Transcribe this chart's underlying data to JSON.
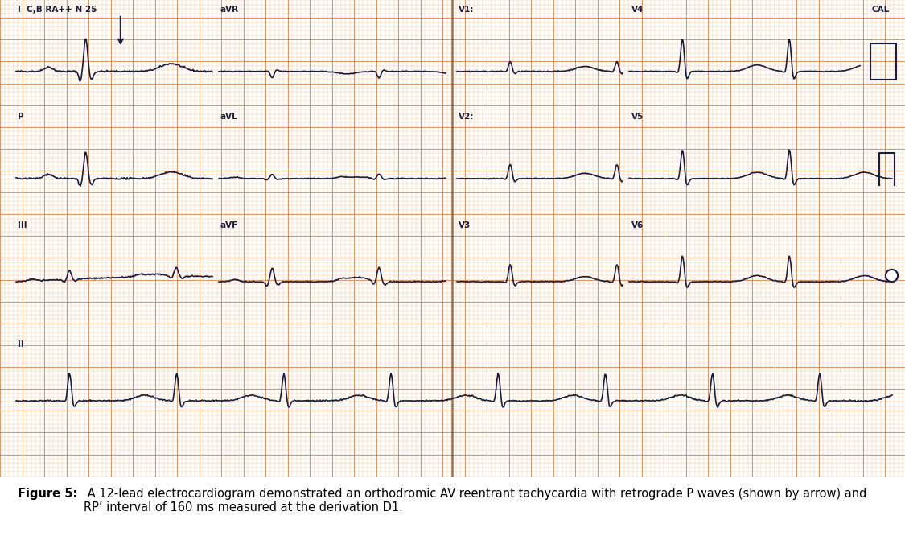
{
  "bg_color": "#F5C98A",
  "grid_minor_color": "#E8A060",
  "grid_major_color": "#D4804A",
  "ecg_color": "#1a1a3a",
  "paper_bg": "#F5C070",
  "title_bold": "Figure 5:",
  "title_rest": " A 12-lead electrocardiogram demonstrated an orthodromic AV reentrant tachycardia with retrograde P waves (shown by arrow) and\nRP’ interval of 160 ms measured at the derivation D1.",
  "caption_fontsize": 10.5,
  "labels_row1_left": "I  C,B RA++ N 25",
  "labels_row1_mid": "aVR",
  "labels_row1_right_v1": "V1:",
  "labels_row1_right_v4": "V4",
  "labels_row1_cal": "CAL",
  "labels_row2_left": "P",
  "labels_row2_mid": "aVL",
  "labels_row2_right_v2": "V2:",
  "labels_row2_right_v5": "V5",
  "labels_row3_left": "III",
  "labels_row3_mid": "aVF",
  "labels_row3_right_v3": "V3",
  "labels_row3_right_v6": "V6",
  "labels_row4_left": "II"
}
